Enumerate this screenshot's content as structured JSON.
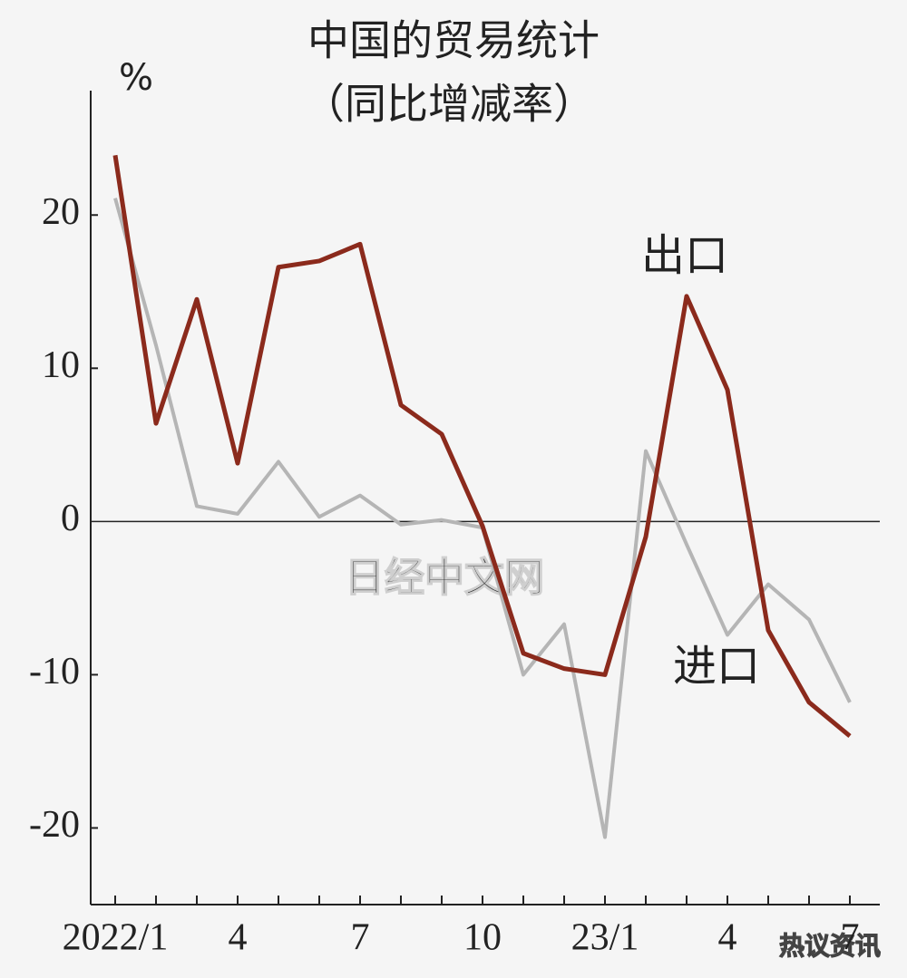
{
  "chart_data": {
    "type": "line",
    "title": "中国的贸易统计",
    "subtitle": "（同比增减率）",
    "y_unit": "%",
    "categories": [
      "2022/1",
      null,
      null,
      "4",
      null,
      null,
      "7",
      null,
      null,
      "10",
      null,
      null,
      "23/1",
      null,
      null,
      "4",
      null,
      null,
      "7"
    ],
    "series": [
      {
        "name": "出口",
        "color": "#8b2a1c",
        "values": [
          23.9,
          6.4,
          14.5,
          3.8,
          16.6,
          17.0,
          18.1,
          7.6,
          5.7,
          -0.3,
          -8.6,
          -9.6,
          -10.0,
          -1.0,
          14.7,
          8.6,
          -7.1,
          -11.8,
          -14.0
        ]
      },
      {
        "name": "进口",
        "color": "#b5b5b5",
        "values": [
          21.1,
          11.5,
          1.0,
          0.5,
          3.9,
          0.3,
          1.7,
          -0.2,
          0.1,
          -0.4,
          -10.0,
          -6.7,
          -20.6,
          4.6,
          -1.5,
          -7.4,
          -4.1,
          -6.4,
          -11.8
        ]
      }
    ],
    "ylim": [
      -25,
      28
    ],
    "yticks": [
      20,
      10,
      0,
      -10,
      -20
    ],
    "watermarks": [
      "日经中文网",
      "热议资讯"
    ]
  }
}
